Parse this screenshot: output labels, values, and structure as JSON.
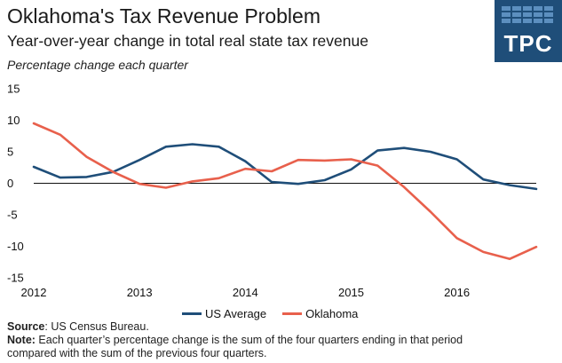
{
  "header": {
    "title": "Oklahoma's Tax Revenue Problem",
    "subtitle": "Year-over-year change in total real state tax revenue",
    "unit_note": "Percentage change each quarter"
  },
  "logo": {
    "text": "TPC"
  },
  "footnotes": {
    "source_label": "Source",
    "source_text": ": US Census Bureau.",
    "note_label": "Note:",
    "note_line1": " Each quarter’s percentage change is the sum of the four quarters ending in that period",
    "note_line2": "compared with the sum of the previous four quarters."
  },
  "chart_data": {
    "type": "line",
    "xlabel": "",
    "ylabel": "",
    "x_tick_labels": [
      "2012",
      "2013",
      "2014",
      "2015",
      "2016"
    ],
    "x_range": [
      2012.0,
      2016.75
    ],
    "ylim": [
      -15,
      15
    ],
    "y_ticks": [
      15,
      10,
      5,
      0,
      -5,
      -10,
      -15
    ],
    "grid": false,
    "legend_position": "bottom",
    "x": [
      2012.0,
      2012.25,
      2012.5,
      2012.75,
      2013.0,
      2013.25,
      2013.5,
      2013.75,
      2014.0,
      2014.25,
      2014.5,
      2014.75,
      2015.0,
      2015.25,
      2015.5,
      2015.75,
      2016.0,
      2016.25,
      2016.5,
      2016.75
    ],
    "series": [
      {
        "name": "US Average",
        "color": "#1f4e79",
        "values": [
          2.6,
          0.9,
          1.0,
          1.8,
          3.7,
          5.8,
          6.2,
          5.8,
          3.5,
          0.2,
          -0.1,
          0.5,
          2.2,
          5.2,
          5.6,
          5.0,
          3.8,
          0.6,
          -0.3,
          -0.9
        ]
      },
      {
        "name": "Oklahoma",
        "color": "#e8604c",
        "values": [
          9.5,
          7.7,
          4.2,
          1.8,
          -0.1,
          -0.7,
          0.3,
          0.8,
          2.3,
          1.9,
          3.7,
          3.6,
          3.8,
          2.8,
          -0.6,
          -4.5,
          -8.7,
          -10.9,
          -12.0,
          -10.1
        ]
      }
    ]
  }
}
